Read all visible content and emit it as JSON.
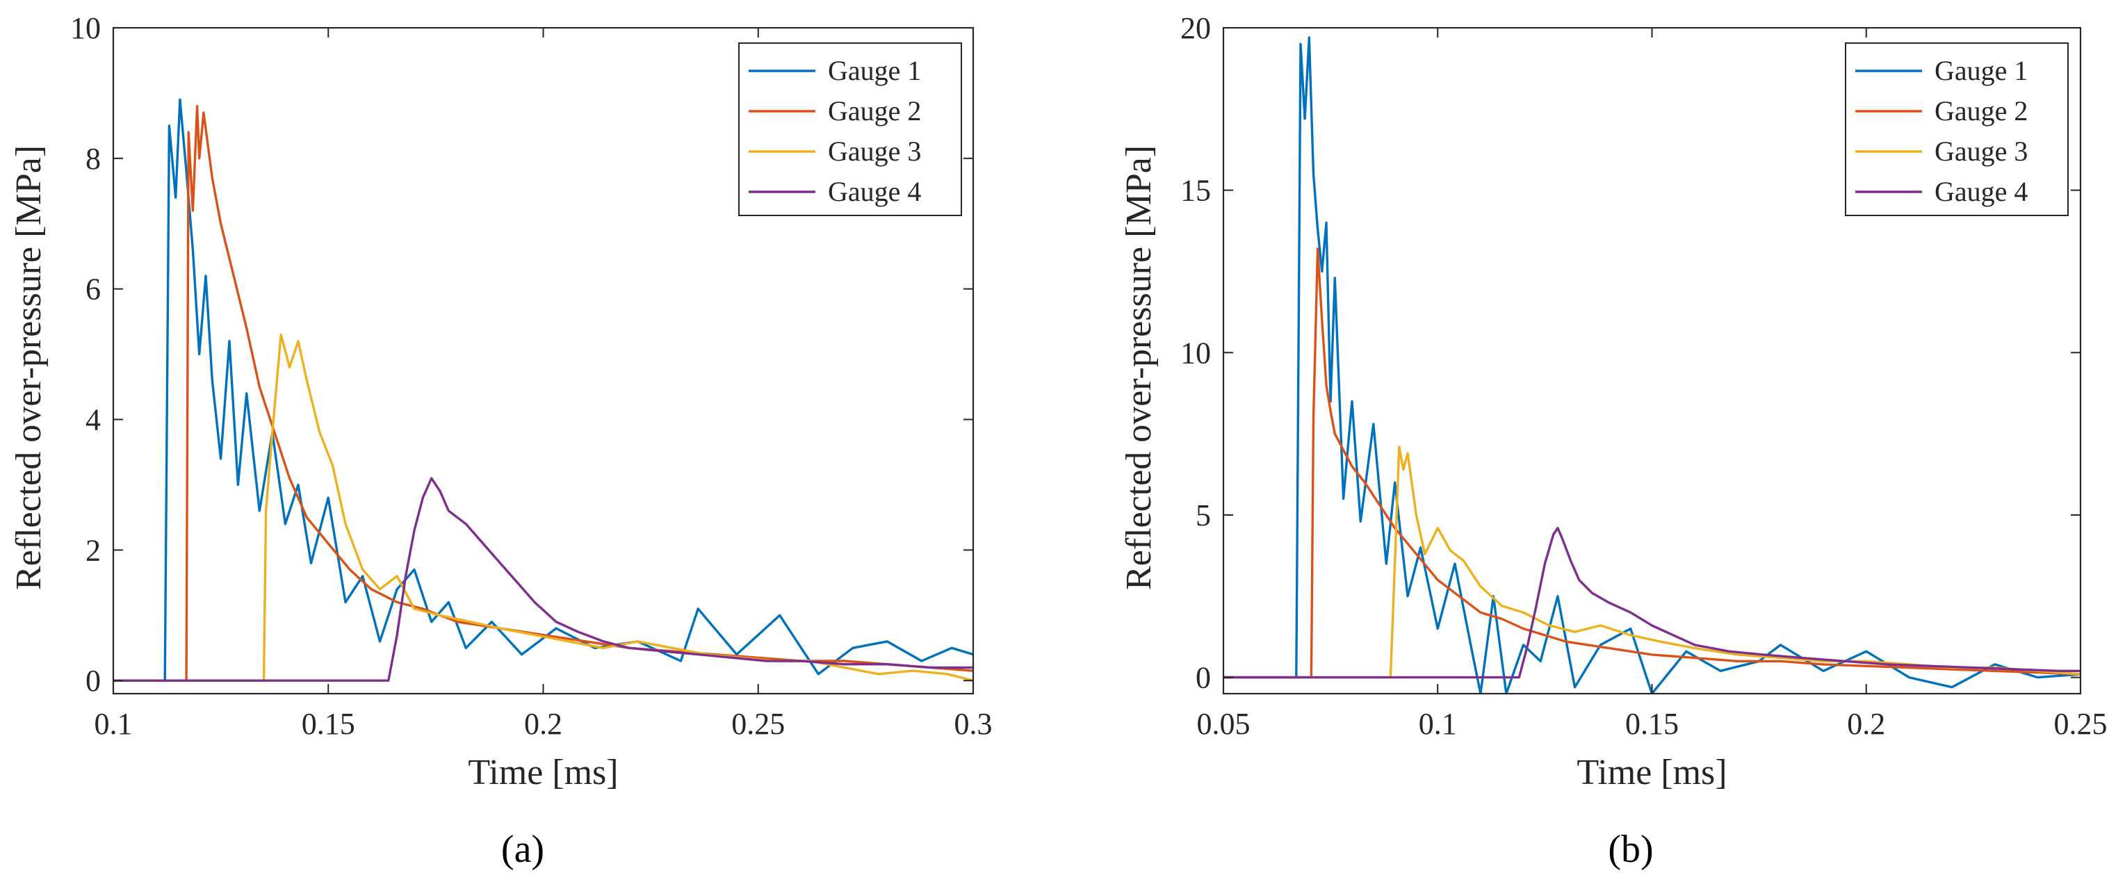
{
  "chart_data": [
    {
      "panel": "(a)",
      "type": "line",
      "xlabel": "Time [ms]",
      "ylabel": "Reflected over-pressure [MPa]",
      "xlim": [
        0.1,
        0.3
      ],
      "ylim": [
        -0.2,
        10
      ],
      "xticks": [
        0.1,
        0.15,
        0.2,
        0.25,
        0.3
      ],
      "xtick_labels": [
        "0.1",
        "0.15",
        "0.2",
        "0.25",
        "0.3"
      ],
      "yticks": [
        0,
        2,
        4,
        6,
        8,
        10
      ],
      "ytick_labels": [
        "0",
        "2",
        "4",
        "6",
        "8",
        "10"
      ],
      "legend_position": "top-right",
      "series": [
        {
          "name": "Gauge 1",
          "color": "#0072BD",
          "x": [
            0.1,
            0.112,
            0.113,
            0.1145,
            0.1155,
            0.117,
            0.1185,
            0.12,
            0.1215,
            0.123,
            0.125,
            0.127,
            0.129,
            0.131,
            0.134,
            0.137,
            0.14,
            0.143,
            0.146,
            0.15,
            0.154,
            0.158,
            0.162,
            0.166,
            0.17,
            0.174,
            0.178,
            0.182,
            0.188,
            0.195,
            0.203,
            0.212,
            0.222,
            0.232,
            0.236,
            0.245,
            0.255,
            0.264,
            0.272,
            0.28,
            0.288,
            0.295,
            0.3
          ],
          "y": [
            0.0,
            0.0,
            8.5,
            7.4,
            8.9,
            7.8,
            6.6,
            5.0,
            6.2,
            4.6,
            3.4,
            5.2,
            3.0,
            4.4,
            2.6,
            3.8,
            2.4,
            3.0,
            1.8,
            2.8,
            1.2,
            1.6,
            0.6,
            1.4,
            1.7,
            0.9,
            1.2,
            0.5,
            0.9,
            0.4,
            0.8,
            0.5,
            0.6,
            0.3,
            1.1,
            0.4,
            1.0,
            0.1,
            0.5,
            0.6,
            0.3,
            0.5,
            0.4
          ]
        },
        {
          "name": "Gauge 2",
          "color": "#D95319",
          "x": [
            0.1,
            0.117,
            0.1175,
            0.1185,
            0.1195,
            0.12,
            0.121,
            0.123,
            0.125,
            0.128,
            0.131,
            0.134,
            0.137,
            0.141,
            0.145,
            0.15,
            0.155,
            0.16,
            0.166,
            0.172,
            0.18,
            0.19,
            0.2,
            0.21,
            0.22,
            0.23,
            0.24,
            0.25,
            0.26,
            0.27,
            0.28,
            0.29,
            0.3
          ],
          "y": [
            0.0,
            0.0,
            8.4,
            7.2,
            8.8,
            8.0,
            8.7,
            7.7,
            7.0,
            6.2,
            5.4,
            4.5,
            3.9,
            3.1,
            2.5,
            2.1,
            1.7,
            1.4,
            1.2,
            1.1,
            0.9,
            0.8,
            0.7,
            0.6,
            0.5,
            0.45,
            0.4,
            0.35,
            0.3,
            0.3,
            0.25,
            0.2,
            0.15
          ]
        },
        {
          "name": "Gauge 3",
          "color": "#EDB120",
          "x": [
            0.1,
            0.135,
            0.1355,
            0.137,
            0.139,
            0.141,
            0.143,
            0.145,
            0.148,
            0.151,
            0.154,
            0.158,
            0.162,
            0.166,
            0.17,
            0.176,
            0.183,
            0.19,
            0.198,
            0.206,
            0.214,
            0.222,
            0.23,
            0.238,
            0.246,
            0.254,
            0.262,
            0.27,
            0.278,
            0.286,
            0.294,
            0.3
          ],
          "y": [
            0.0,
            0.0,
            2.6,
            3.8,
            5.3,
            4.8,
            5.2,
            4.6,
            3.8,
            3.3,
            2.4,
            1.7,
            1.4,
            1.6,
            1.1,
            1.0,
            0.9,
            0.8,
            0.7,
            0.6,
            0.5,
            0.6,
            0.5,
            0.4,
            0.35,
            0.3,
            0.3,
            0.2,
            0.1,
            0.15,
            0.1,
            0.0
          ]
        },
        {
          "name": "Gauge 4",
          "color": "#7E2F8E",
          "x": [
            0.1,
            0.164,
            0.166,
            0.168,
            0.17,
            0.172,
            0.174,
            0.176,
            0.178,
            0.182,
            0.186,
            0.19,
            0.194,
            0.198,
            0.203,
            0.208,
            0.214,
            0.22,
            0.228,
            0.236,
            0.244,
            0.252,
            0.26,
            0.27,
            0.28,
            0.29,
            0.3
          ],
          "y": [
            0.0,
            0.0,
            0.7,
            1.6,
            2.3,
            2.8,
            3.1,
            2.9,
            2.6,
            2.4,
            2.1,
            1.8,
            1.5,
            1.2,
            0.9,
            0.75,
            0.6,
            0.5,
            0.45,
            0.4,
            0.35,
            0.3,
            0.3,
            0.25,
            0.25,
            0.2,
            0.2
          ]
        }
      ],
      "caption": "(a)"
    },
    {
      "panel": "(b)",
      "type": "line",
      "xlabel": "Time [ms]",
      "ylabel": "Reflected over-pressure [MPa]",
      "xlim": [
        0.05,
        0.25
      ],
      "ylim": [
        -0.5,
        20
      ],
      "xticks": [
        0.05,
        0.1,
        0.15,
        0.2,
        0.25
      ],
      "xtick_labels": [
        "0.05",
        "0.1",
        "0.15",
        "0.2",
        "0.25"
      ],
      "yticks": [
        0,
        5,
        10,
        15,
        20
      ],
      "ytick_labels": [
        "0",
        "5",
        "10",
        "15",
        "20"
      ],
      "legend_position": "top-right",
      "series": [
        {
          "name": "Gauge 1",
          "color": "#0072BD",
          "x": [
            0.05,
            0.067,
            0.068,
            0.069,
            0.07,
            0.071,
            0.072,
            0.073,
            0.074,
            0.075,
            0.076,
            0.078,
            0.08,
            0.082,
            0.085,
            0.088,
            0.09,
            0.093,
            0.096,
            0.1,
            0.104,
            0.108,
            0.11,
            0.113,
            0.116,
            0.12,
            0.124,
            0.128,
            0.132,
            0.138,
            0.145,
            0.15,
            0.158,
            0.166,
            0.175,
            0.18,
            0.19,
            0.2,
            0.21,
            0.22,
            0.23,
            0.24,
            0.25
          ],
          "y": [
            0.0,
            0.0,
            19.5,
            17.2,
            19.7,
            15.5,
            13.8,
            12.5,
            14.0,
            8.5,
            12.3,
            5.5,
            8.5,
            4.8,
            7.8,
            3.5,
            6.0,
            2.5,
            4.0,
            1.5,
            3.5,
            0.8,
            -0.5,
            2.5,
            -0.5,
            1.0,
            0.5,
            2.5,
            -0.3,
            1.0,
            1.5,
            -0.5,
            0.8,
            0.2,
            0.5,
            1.0,
            0.2,
            0.8,
            0.0,
            -0.3,
            0.4,
            0.0,
            0.1
          ]
        },
        {
          "name": "Gauge 2",
          "color": "#D95319",
          "x": [
            0.05,
            0.0705,
            0.071,
            0.072,
            0.073,
            0.074,
            0.075,
            0.076,
            0.078,
            0.08,
            0.083,
            0.086,
            0.09,
            0.095,
            0.1,
            0.105,
            0.11,
            0.115,
            0.12,
            0.125,
            0.13,
            0.14,
            0.15,
            0.16,
            0.17,
            0.18,
            0.19,
            0.2,
            0.21,
            0.22,
            0.23,
            0.24,
            0.25
          ],
          "y": [
            0.0,
            0.0,
            8.0,
            13.2,
            11.0,
            9.0,
            8.2,
            7.5,
            7.0,
            6.5,
            6.0,
            5.4,
            4.6,
            3.8,
            3.0,
            2.5,
            2.0,
            1.8,
            1.5,
            1.3,
            1.1,
            0.9,
            0.7,
            0.6,
            0.5,
            0.5,
            0.4,
            0.35,
            0.3,
            0.25,
            0.2,
            0.15,
            0.1
          ]
        },
        {
          "name": "Gauge 3",
          "color": "#EDB120",
          "x": [
            0.05,
            0.089,
            0.09,
            0.091,
            0.092,
            0.093,
            0.095,
            0.097,
            0.1,
            0.103,
            0.106,
            0.11,
            0.115,
            0.12,
            0.126,
            0.132,
            0.138,
            0.145,
            0.152,
            0.16,
            0.17,
            0.18,
            0.19,
            0.2,
            0.21,
            0.22,
            0.23,
            0.24,
            0.25
          ],
          "y": [
            0.0,
            0.0,
            3.5,
            7.1,
            6.4,
            6.9,
            5.0,
            3.8,
            4.6,
            3.9,
            3.6,
            2.8,
            2.2,
            2.0,
            1.6,
            1.4,
            1.6,
            1.3,
            1.1,
            0.9,
            0.7,
            0.6,
            0.5,
            0.5,
            0.4,
            0.3,
            0.3,
            0.2,
            0.1
          ]
        },
        {
          "name": "Gauge 4",
          "color": "#7E2F8E",
          "x": [
            0.05,
            0.119,
            0.121,
            0.123,
            0.125,
            0.127,
            0.128,
            0.129,
            0.131,
            0.133,
            0.136,
            0.14,
            0.145,
            0.15,
            0.155,
            0.16,
            0.168,
            0.176,
            0.185,
            0.195,
            0.205,
            0.215,
            0.225,
            0.235,
            0.245,
            0.25
          ],
          "y": [
            0.0,
            0.0,
            1.0,
            2.2,
            3.5,
            4.4,
            4.6,
            4.3,
            3.6,
            3.0,
            2.6,
            2.3,
            2.0,
            1.6,
            1.3,
            1.0,
            0.8,
            0.7,
            0.6,
            0.5,
            0.4,
            0.35,
            0.3,
            0.25,
            0.2,
            0.2
          ]
        }
      ],
      "caption": "(b)"
    }
  ]
}
